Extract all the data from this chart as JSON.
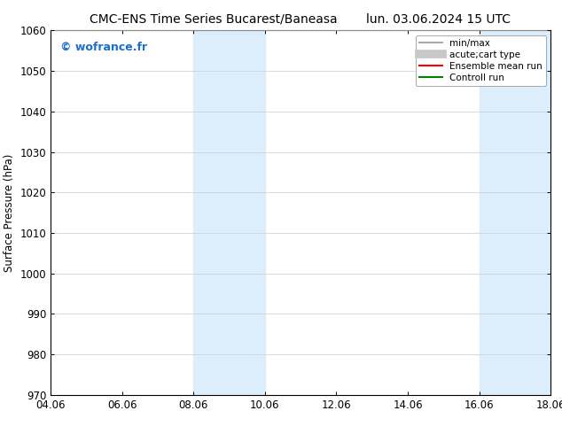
{
  "title_left": "CMC-ENS Time Series Bucarest/Baneasa",
  "title_right": "lun. 03.06.2024 15 UTC",
  "ylabel": "Surface Pressure (hPa)",
  "ylim": [
    970,
    1060
  ],
  "yticks": [
    970,
    980,
    990,
    1000,
    1010,
    1020,
    1030,
    1040,
    1050,
    1060
  ],
  "xtick_labels": [
    "04.06",
    "06.06",
    "08.06",
    "10.06",
    "12.06",
    "14.06",
    "16.06",
    "18.06"
  ],
  "xtick_positions": [
    0,
    2,
    4,
    6,
    8,
    10,
    12,
    14
  ],
  "xlim": [
    0,
    14
  ],
  "shaded_regions": [
    {
      "xmin": 4,
      "xmax": 6,
      "color": "#dceefb"
    },
    {
      "xmin": 12,
      "xmax": 14,
      "color": "#dceefb"
    }
  ],
  "watermark_text": "© wofrance.fr",
  "watermark_color": "#1a6fcc",
  "legend_entries": [
    {
      "label": "min/max",
      "color": "#aaaaaa",
      "lw": 1.5,
      "style": "line"
    },
    {
      "label": "acute;cart type",
      "color": "#c8c8c8",
      "lw": 7,
      "style": "line"
    },
    {
      "label": "Ensemble mean run",
      "color": "red",
      "lw": 1.5,
      "style": "line"
    },
    {
      "label": "Controll run",
      "color": "green",
      "lw": 1.5,
      "style": "line"
    }
  ],
  "bg_color": "white",
  "plot_bg_color": "white",
  "grid_color": "#cccccc",
  "title_fontsize": 10,
  "tick_fontsize": 8.5,
  "ylabel_fontsize": 8.5,
  "watermark_fontsize": 9,
  "legend_fontsize": 7.5
}
